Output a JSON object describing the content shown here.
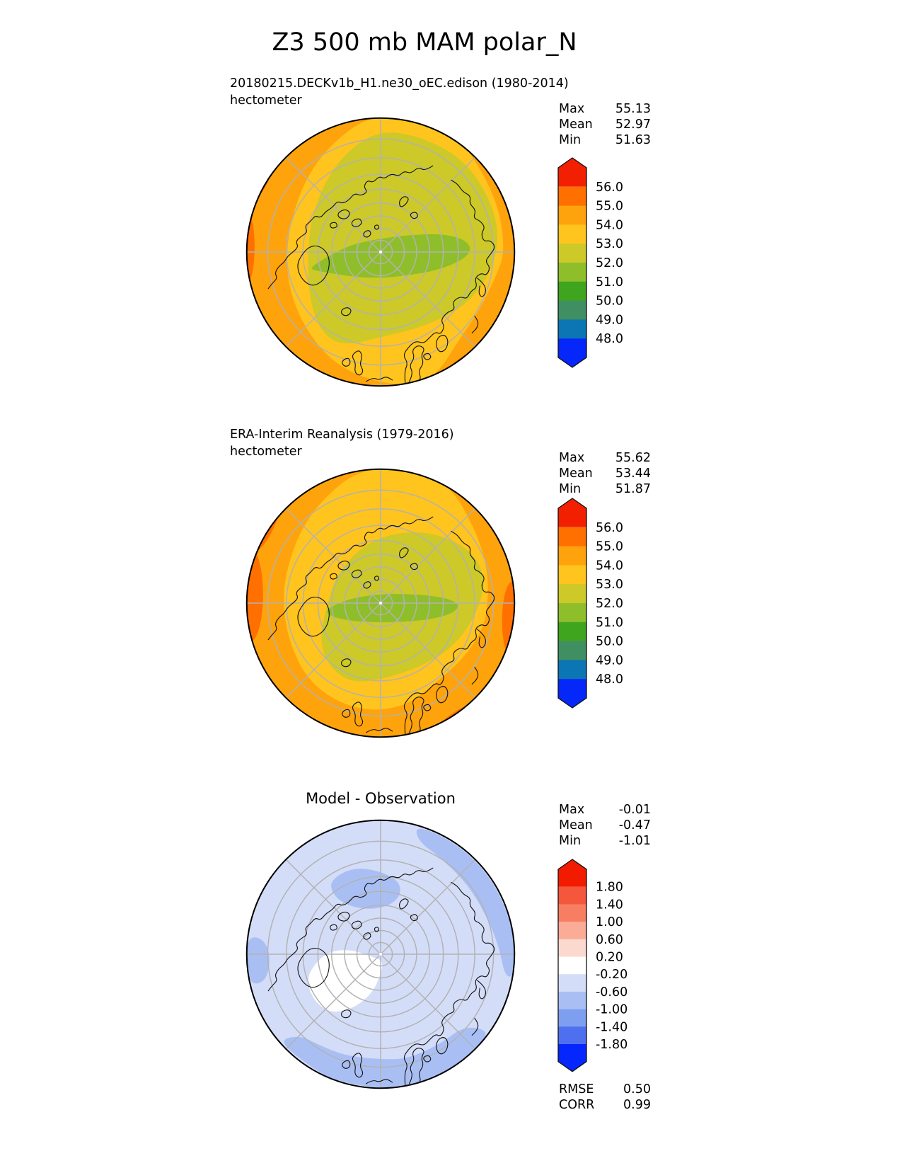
{
  "page": {
    "title": "Z3 500 mb MAM polar_N"
  },
  "labels": {
    "max": "Max",
    "mean": "Mean",
    "min": "Min",
    "rmse": "RMSE",
    "corr": "CORR"
  },
  "chart_data": [
    {
      "type": "heatmap",
      "projection": "north-polar-stereographic",
      "title": "20180215.DECKv1b_H1.ne30_oEC.edison (1980-2014)",
      "units": "hectometer",
      "stats": {
        "max": "55.13",
        "mean": "52.97",
        "min": "51.63"
      },
      "colorbar": {
        "extend": "both",
        "levels": [
          "56.0",
          "55.0",
          "54.0",
          "53.0",
          "52.0",
          "51.0",
          "50.0",
          "49.0",
          "48.0"
        ],
        "colors": [
          "#f22000",
          "#ff7000",
          "#ffa30c",
          "#ffc41e",
          "#ccc929",
          "#8fbe2b",
          "#3fa41e",
          "#3f8f62",
          "#0c76b4",
          "#0527fa"
        ]
      }
    },
    {
      "type": "heatmap",
      "projection": "north-polar-stereographic",
      "title": "ERA-Interim Reanalysis (1979-2016)",
      "units": "hectometer",
      "stats": {
        "max": "55.62",
        "mean": "53.44",
        "min": "51.87"
      },
      "colorbar": {
        "extend": "both",
        "levels": [
          "56.0",
          "55.0",
          "54.0",
          "53.0",
          "52.0",
          "51.0",
          "50.0",
          "49.0",
          "48.0"
        ],
        "colors": [
          "#f22000",
          "#ff7000",
          "#ffa30c",
          "#ffc41e",
          "#ccc929",
          "#8fbe2b",
          "#3fa41e",
          "#3f8f62",
          "#0c76b4",
          "#0527fa"
        ]
      }
    },
    {
      "type": "heatmap",
      "projection": "north-polar-stereographic",
      "title": "Model - Observation",
      "stats": {
        "max": "-0.01",
        "mean": "-0.47",
        "min": "-1.01",
        "rmse": "0.50",
        "corr": "0.99"
      },
      "colorbar": {
        "extend": "both",
        "levels": [
          "1.80",
          "1.40",
          "1.00",
          "0.60",
          "0.20",
          "-0.20",
          "-0.60",
          "-1.00",
          "-1.40",
          "-1.80"
        ],
        "colors": [
          "#f21b00",
          "#f4573c",
          "#f77e63",
          "#faac97",
          "#fcd9ce",
          "#ffffff",
          "#d4ddf8",
          "#a9bff4",
          "#7e9ef0",
          "#4e70f0",
          "#0527fe"
        ]
      }
    }
  ]
}
